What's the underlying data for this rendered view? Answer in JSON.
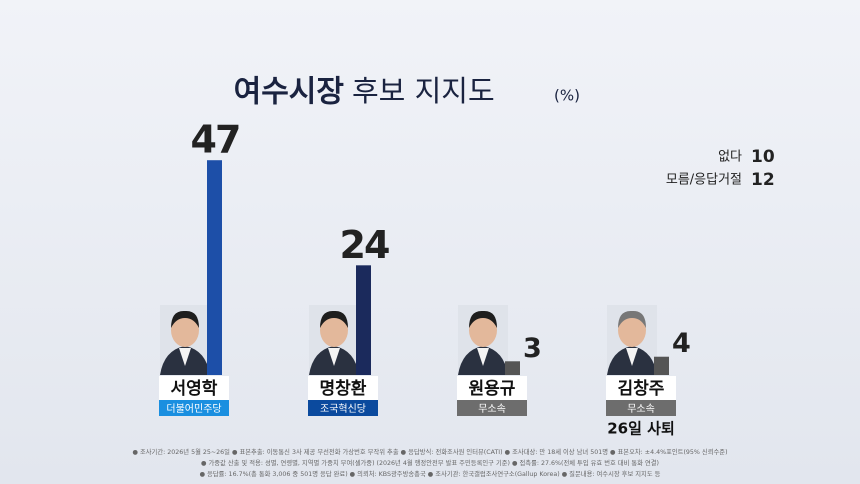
{
  "chart_data": {
    "type": "bar",
    "title_emphasis": "여수시장",
    "title": "후보 지지도",
    "unit": "(%)",
    "categories": [
      "서영학",
      "명창환",
      "원용규",
      "김창주"
    ],
    "parties": [
      "더불어민주당",
      "조국혁신당",
      "무소속",
      "무소속"
    ],
    "party_colors": [
      "#1a8fe0",
      "#0b4a9e",
      "#6d6d6d",
      "#6d6d6d"
    ],
    "values": [
      47,
      24,
      3,
      4
    ],
    "colors": [
      "#1d4fa8",
      "#1b2a5c",
      "#555555",
      "#555555"
    ],
    "notes": [
      null,
      null,
      null,
      "26일 사퇴"
    ],
    "others": [
      {
        "label": "없다",
        "value": 10
      },
      {
        "label": "모름/응답거절",
        "value": 12
      }
    ],
    "footnotes": [
      "● 조사기간: 2026년 5월 25~26일 ● 표본추출: 이동통신 3사 제공 무선전화 가상번호 무작위 추출 ● 응답방식: 전화조사원 인터뷰(CATI) ● 조사대상: 만 18세 이상 남녀 501명 ● 표본오차: ±4.4%포인트(95% 신뢰수준)",
      "● 가중값 산출 및 적용: 성별, 연령별, 지역별 가중치 부여(셀가중) (2026년 4월 행정안전부 발표 주민등록인구 기준) ● 접촉률: 27.6%(전체 투입 유효 번호 대비 통화 연결)",
      "● 응답률: 16.7%(총 통화 3,006 중 501명 응답 완료) ● 의뢰처: KBS광주방송총국 ● 조사기관: 한국갤럽조사연구소(Gallup Korea) ● 질문내용: 여수시장 후보 지지도 등"
    ]
  }
}
